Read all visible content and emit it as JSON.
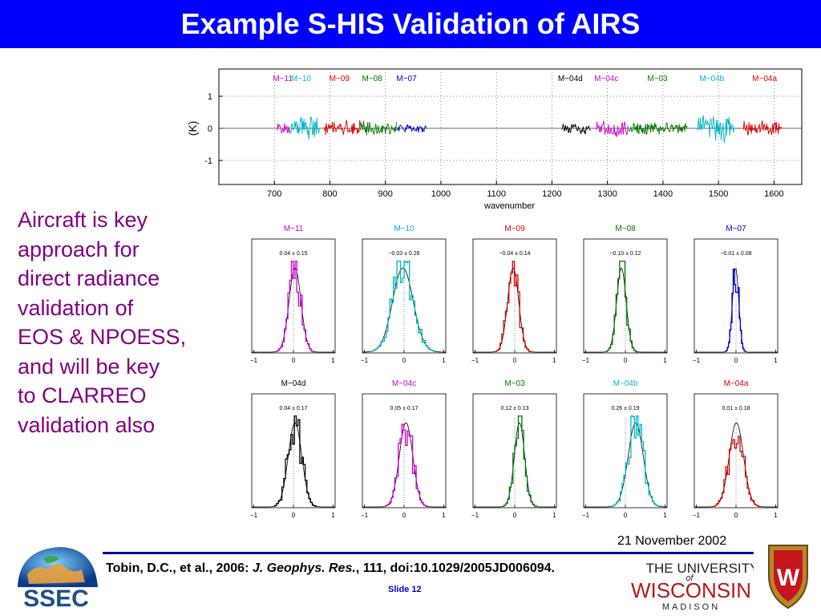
{
  "slide": {
    "title": "Example S-HIS Validation of AIRS",
    "body_lines": [
      "Aircraft is key",
      "approach for",
      "direct radiance",
      "validation of",
      "EOS & NPOESS,",
      "and will be key",
      "to CLARREO",
      "validation also"
    ],
    "date": "21 November 2002",
    "citation": {
      "authors": "Tobin, D.C., et al., 2006: ",
      "journal": "J. Geophys. Res.",
      "rest": ", 111, doi:10.1029/2005JD006094."
    },
    "slide_label": "Slide 12",
    "logos": {
      "ssec": "SSEC",
      "uw_line1": "THE UNIVERSITY",
      "uw_line2": "of",
      "uw_line3": "WISCONSIN",
      "uw_line4": "MADISON",
      "crest_letter": "W"
    }
  },
  "colors": {
    "title_bar": "#0000ff",
    "body_text": "#800080",
    "magenta": "#cc00cc",
    "cyan": "#00b5c8",
    "red": "#dd0000",
    "green": "#007700",
    "blue": "#0000cc",
    "black": "#000000"
  },
  "chart_data": [
    {
      "type": "line",
      "xlabel": "wavenumber",
      "ylabel": "(K)",
      "xlim": [
        600,
        1650
      ],
      "ylim": [
        -1.75,
        1.85
      ],
      "x_ticks": [
        700,
        800,
        900,
        1000,
        1100,
        1200,
        1300,
        1400,
        1500,
        1600
      ],
      "y_ticks": [
        -1,
        0,
        1
      ],
      "grid": true,
      "series": [
        {
          "name": "M−11",
          "color": "magenta",
          "x_range": [
            705,
            730
          ],
          "label_x": 715,
          "amp": 0.22
        },
        {
          "name": "M−10",
          "color": "cyan",
          "x_range": [
            728,
            782
          ],
          "label_x": 748,
          "amp": 0.45
        },
        {
          "name": "M−09",
          "color": "red",
          "x_range": [
            790,
            855
          ],
          "label_x": 817,
          "amp": 0.3
        },
        {
          "name": "M−08",
          "color": "green",
          "x_range": [
            855,
            920
          ],
          "label_x": 876,
          "amp": 0.25
        },
        {
          "name": "M−07",
          "color": "blue",
          "x_range": [
            920,
            975
          ],
          "label_x": 938,
          "amp": 0.15
        },
        {
          "name": "M−04d",
          "color": "black",
          "x_range": [
            1218,
            1270
          ],
          "label_x": 1233,
          "amp": 0.2
        },
        {
          "name": "M−04c",
          "color": "magenta",
          "x_range": [
            1280,
            1338
          ],
          "label_x": 1298,
          "amp": 0.28
        },
        {
          "name": "M−03",
          "color": "green",
          "x_range": [
            1338,
            1445
          ],
          "label_x": 1390,
          "amp": 0.22
        },
        {
          "name": "M−04b",
          "color": "cyan",
          "x_range": [
            1462,
            1530
          ],
          "label_x": 1488,
          "amp": 0.5
        },
        {
          "name": "M−04a",
          "color": "red",
          "x_range": [
            1545,
            1615
          ],
          "label_x": 1583,
          "amp": 0.28
        }
      ]
    },
    {
      "type": "histogram",
      "x_ticks": [
        -1,
        0,
        1
      ],
      "xlim": [
        -1.05,
        1.05
      ],
      "panels": [
        {
          "name": "M−11",
          "color": "magenta",
          "stat": "0.04 ± 0.15",
          "mean": 0.04,
          "sd": 0.15
        },
        {
          "name": "M−10",
          "color": "cyan",
          "stat": "−0.03 ± 0.26",
          "mean": -0.03,
          "sd": 0.26
        },
        {
          "name": "M−09",
          "color": "red",
          "stat": "−0.04 ± 0.14",
          "mean": -0.04,
          "sd": 0.14
        },
        {
          "name": "M−08",
          "color": "green",
          "stat": "−0.10 ± 0.12",
          "mean": -0.1,
          "sd": 0.12
        },
        {
          "name": "M−07",
          "color": "blue",
          "stat": "−0.01 ± 0.08",
          "mean": -0.01,
          "sd": 0.08
        },
        {
          "name": "M−04d",
          "color": "black",
          "stat": "0.04 ± 0.17",
          "mean": 0.04,
          "sd": 0.17
        },
        {
          "name": "M−04c",
          "color": "magenta",
          "stat": "0.05 ± 0.17",
          "mean": 0.05,
          "sd": 0.17
        },
        {
          "name": "M−03",
          "color": "green",
          "stat": "0.12 ± 0.13",
          "mean": 0.12,
          "sd": 0.13
        },
        {
          "name": "M−04b",
          "color": "cyan",
          "stat": "0.26 ± 0.19",
          "mean": 0.26,
          "sd": 0.19
        },
        {
          "name": "M−04a",
          "color": "red",
          "stat": "0.01 ± 0.18",
          "mean": 0.01,
          "sd": 0.18
        }
      ]
    }
  ]
}
